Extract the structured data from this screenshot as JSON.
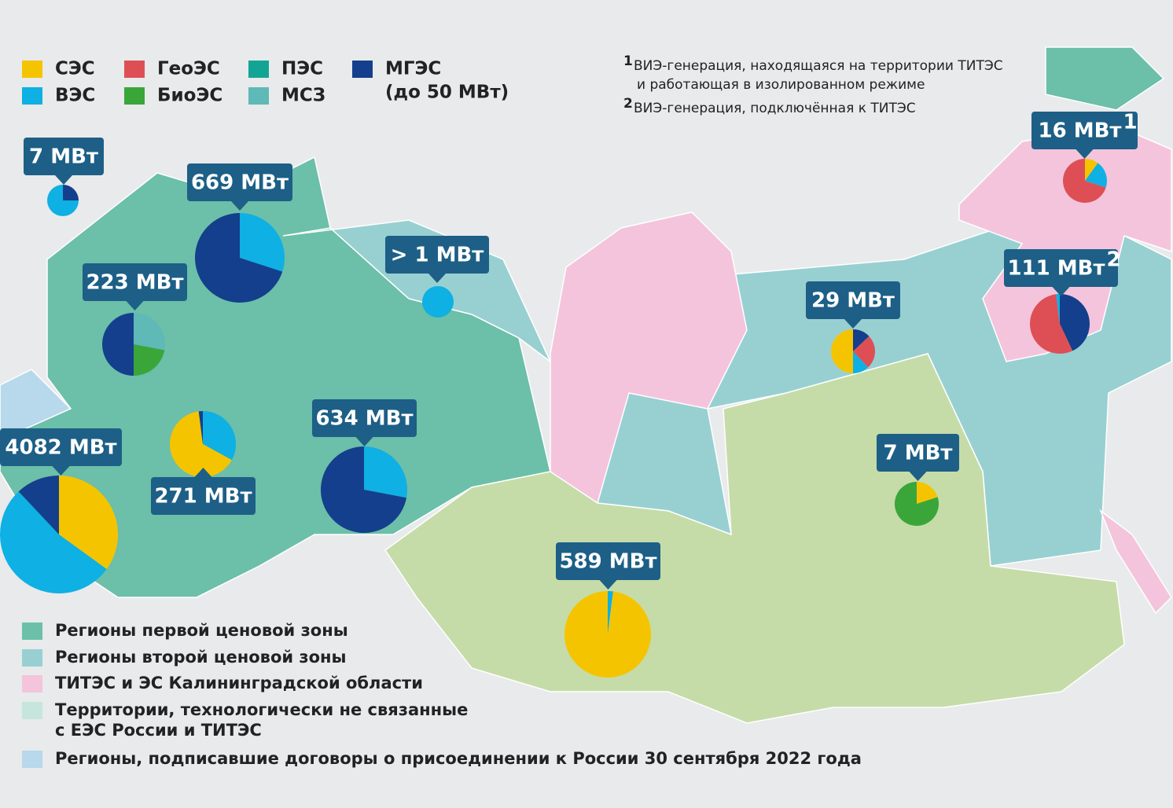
{
  "legend": {
    "items": [
      {
        "name": "СЭС",
        "color": "#f5c400"
      },
      {
        "name": "ВЭС",
        "color": "#0fb0e3"
      },
      {
        "name": "ГеоЭС",
        "color": "#de4f55"
      },
      {
        "name": "БиоЭС",
        "color": "#3aa63a"
      },
      {
        "name": "ПЭС",
        "color": "#13a594"
      },
      {
        "name": "МСЗ",
        "color": "#5fb9b6"
      },
      {
        "name": "МГЭС",
        "note": "(до 50 МВт)",
        "color": "#143f8c"
      }
    ]
  },
  "footnotes": [
    {
      "mark": "1",
      "lines": [
        "ВИЭ-генерация, находящаяся на территории ТИТЭС",
        "и работающая в изолированном режиме"
      ]
    },
    {
      "mark": "2",
      "lines": [
        "ВИЭ-генерация, подключённая к ТИТЭС"
      ]
    }
  ],
  "zones": [
    {
      "lines": [
        "Регионы первой ценовой зоны"
      ],
      "color": "#6cbfa8"
    },
    {
      "lines": [
        "Регионы второй ценовой зоны"
      ],
      "color": "#98d0d2"
    },
    {
      "lines": [
        "ТИТЭС и ЭС Калининградской области"
      ],
      "color": "#f4c4dc"
    },
    {
      "lines": [
        "Территории, технологически не связанные",
        "с ЕЭС России и ТИТЭС"
      ],
      "color": "#c6e6dc"
    },
    {
      "lines": [
        "Регионы, подписавшие договоры о присоединении к России 30 сентября 2022 года"
      ],
      "color": "#b8d8ec"
    }
  ],
  "pies": [
    {
      "label": "7 МВт",
      "slices": [
        {
          "color": "#143f8c",
          "value": 25
        },
        {
          "color": "#0fb0e3",
          "value": 75
        }
      ]
    },
    {
      "label": "669 МВт",
      "slices": [
        {
          "color": "#0fb0e3",
          "value": 30
        },
        {
          "color": "#143f8c",
          "value": 70
        }
      ]
    },
    {
      "label": "223 МВт",
      "slices": [
        {
          "color": "#5fb9b6",
          "value": 28
        },
        {
          "color": "#3aa63a",
          "value": 22
        },
        {
          "color": "#143f8c",
          "value": 50
        }
      ]
    },
    {
      "label": "271 МВт",
      "slices": [
        {
          "color": "#0fb0e3",
          "value": 33
        },
        {
          "color": "#f5c400",
          "value": 65
        },
        {
          "color": "#143f8c",
          "value": 2
        }
      ]
    },
    {
      "label": "4082 МВт",
      "slices": [
        {
          "color": "#f5c400",
          "value": 35
        },
        {
          "color": "#0fb0e3",
          "value": 53
        },
        {
          "color": "#143f8c",
          "value": 12
        }
      ]
    },
    {
      "label": "634 МВт",
      "slices": [
        {
          "color": "#0fb0e3",
          "value": 28
        },
        {
          "color": "#143f8c",
          "value": 72
        }
      ]
    },
    {
      "label": "> 1 МВт",
      "slices": [
        {
          "color": "#0fb0e3",
          "value": 100
        }
      ]
    },
    {
      "label": "589 МВт",
      "slices": [
        {
          "color": "#0fb0e3",
          "value": 2
        },
        {
          "color": "#f5c400",
          "value": 98
        }
      ]
    },
    {
      "label": "29 МВт",
      "slices": [
        {
          "color": "#143f8c",
          "value": 13
        },
        {
          "color": "#de4f55",
          "value": 25
        },
        {
          "color": "#0fb0e3",
          "value": 12
        },
        {
          "color": "#f5c400",
          "value": 50
        }
      ]
    },
    {
      "label": "7 МВт",
      "slices": [
        {
          "color": "#f5c400",
          "value": 20
        },
        {
          "color": "#3aa63a",
          "value": 80
        }
      ]
    },
    {
      "label": "16 МВт",
      "note": "1",
      "slices": [
        {
          "color": "#f5c400",
          "value": 10
        },
        {
          "color": "#0fb0e3",
          "value": 20
        },
        {
          "color": "#de4f55",
          "value": 70
        }
      ]
    },
    {
      "label": "111 МВт",
      "note": "2",
      "slices": [
        {
          "color": "#143f8c",
          "value": 43
        },
        {
          "color": "#de4f55",
          "value": 55
        },
        {
          "color": "#0fb0e3",
          "value": 2
        }
      ]
    }
  ]
}
